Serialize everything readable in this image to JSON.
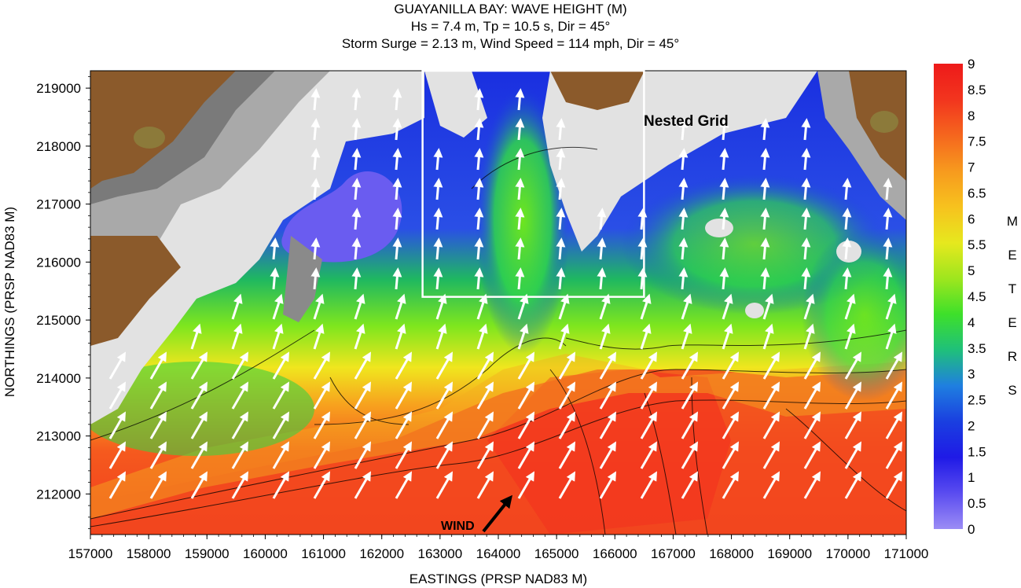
{
  "chart_data": {
    "type": "heatmap",
    "title": "GUAYANILLA BAY: WAVE HEIGHT (M)",
    "subtitle_1": "Hs = 7.4 m, Tp = 10.5 s, Dir = 45°",
    "subtitle_2": "Storm Surge = 2.13 m, Wind Speed = 114 mph, Dir = 45°",
    "xlabel": "EASTINGS (PRSP NAD83 M)",
    "ylabel": "NORTHINGS (PRSP NAD83 M)",
    "xlim": [
      157000,
      171000
    ],
    "ylim": [
      211300,
      219300
    ],
    "x_ticks": [
      157000,
      158000,
      159000,
      160000,
      161000,
      162000,
      163000,
      164000,
      165000,
      166000,
      167000,
      168000,
      169000,
      170000,
      171000
    ],
    "y_ticks": [
      212000,
      213000,
      214000,
      215000,
      216000,
      217000,
      218000,
      219000
    ],
    "colorbar": {
      "unit_letters": [
        "M",
        "E",
        "T",
        "E",
        "R",
        "S"
      ],
      "min": 0,
      "max": 9,
      "tick_labels": [
        "0",
        "0.5",
        "1",
        "1.5",
        "2",
        "2.5",
        "3",
        "3.5",
        "4",
        "4.5",
        "5",
        "5.5",
        "6",
        "6.5",
        "7",
        "7.5",
        "8",
        "8.5",
        "9"
      ],
      "colors": [
        "#9b8cf5",
        "#5a4cf0",
        "#1f1ae6",
        "#1a3fe0",
        "#1f7fe0",
        "#1fc07a",
        "#3ee02a",
        "#9ee61e",
        "#e6e81e",
        "#f7c21e",
        "#f79a1e",
        "#f5661e",
        "#f2351e",
        "#ee1a1a"
      ]
    },
    "nested_grid": {
      "label": "Nested Grid",
      "x_range": [
        162700,
        166500
      ],
      "y_range": [
        215400,
        219300
      ]
    },
    "wind": {
      "label": "WIND",
      "direction_deg": 45
    },
    "land_colors": {
      "land_low": "#e2e2e2",
      "land_mid": "#a9a9a9",
      "land_high": "#7a7a7a",
      "terrain": "#8b5a2b",
      "peak": "#8c7a3a"
    }
  }
}
